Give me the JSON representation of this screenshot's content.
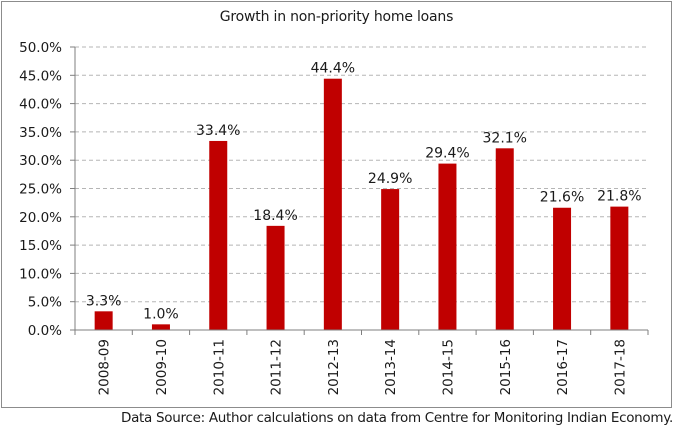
{
  "chart_data": {
    "type": "bar",
    "title": "Growth in non-priority home loans",
    "categories": [
      "2008-09",
      "2009-10",
      "2010-11",
      "2011-12",
      "2012-13",
      "2013-14",
      "2014-15",
      "2015-16",
      "2016-17",
      "2017-18"
    ],
    "values": [
      3.3,
      1.0,
      33.4,
      18.4,
      44.4,
      24.9,
      29.4,
      32.1,
      21.6,
      21.8
    ],
    "data_labels": [
      "3.3%",
      "1.0%",
      "33.4%",
      "18.4%",
      "44.4%",
      "24.9%",
      "29.4%",
      "32.1%",
      "21.6%",
      "21.8%"
    ],
    "y_ticks": [
      "0.0%",
      "5.0%",
      "10.0%",
      "15.0%",
      "20.0%",
      "25.0%",
      "30.0%",
      "35.0%",
      "40.0%",
      "45.0%",
      "50.0%"
    ],
    "ylim": [
      0,
      50
    ],
    "xlabel": "",
    "ylabel": "",
    "grid": true,
    "legend": "none",
    "bar_color": "#c00000"
  },
  "source_note": "Data Source: Author calculations on data from Centre for Monitoring Indian Economy."
}
